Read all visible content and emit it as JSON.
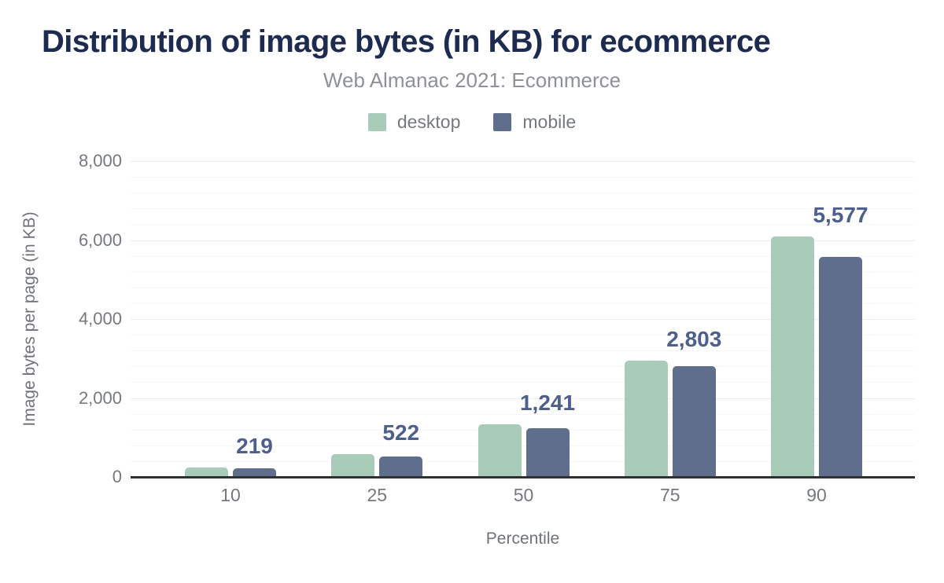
{
  "chart_data": {
    "type": "bar",
    "title": "Distribution of image bytes (in KB) for ecommerce",
    "subtitle": "Web Almanac 2021: Ecommerce",
    "xlabel": "Percentile",
    "ylabel": "Image bytes per page (in KB)",
    "categories": [
      "10",
      "25",
      "50",
      "75",
      "90"
    ],
    "series": [
      {
        "name": "desktop",
        "color": "#a9cbba",
        "values": [
          241,
          571,
          1327,
          2936,
          6087
        ]
      },
      {
        "name": "mobile",
        "color": "#5f6e8c",
        "values": [
          219,
          522,
          1241,
          2803,
          5577
        ]
      }
    ],
    "data_labels": {
      "labeled_series": "mobile",
      "formatted_values": [
        "219",
        "522",
        "1,241",
        "2,803",
        "5,577"
      ]
    },
    "ylim": [
      0,
      8000
    ],
    "y_major_step": 2000,
    "y_minor_step": 400,
    "y_tick_labels": [
      "0",
      "2,000",
      "4,000",
      "6,000",
      "8,000"
    ],
    "grid": "on",
    "legend_position": "top"
  },
  "colors": {
    "title": "#1d2b50",
    "subtitle": "#8e9297",
    "legend_label": "#75797e",
    "axis_title": "#6f7378",
    "tick_label": "#75797e",
    "data_label": "#4d608c",
    "axis_line": "#2f3133",
    "grid_major": "#ececec",
    "grid_minor": "#f7f7f7",
    "background": "#ffffff"
  }
}
